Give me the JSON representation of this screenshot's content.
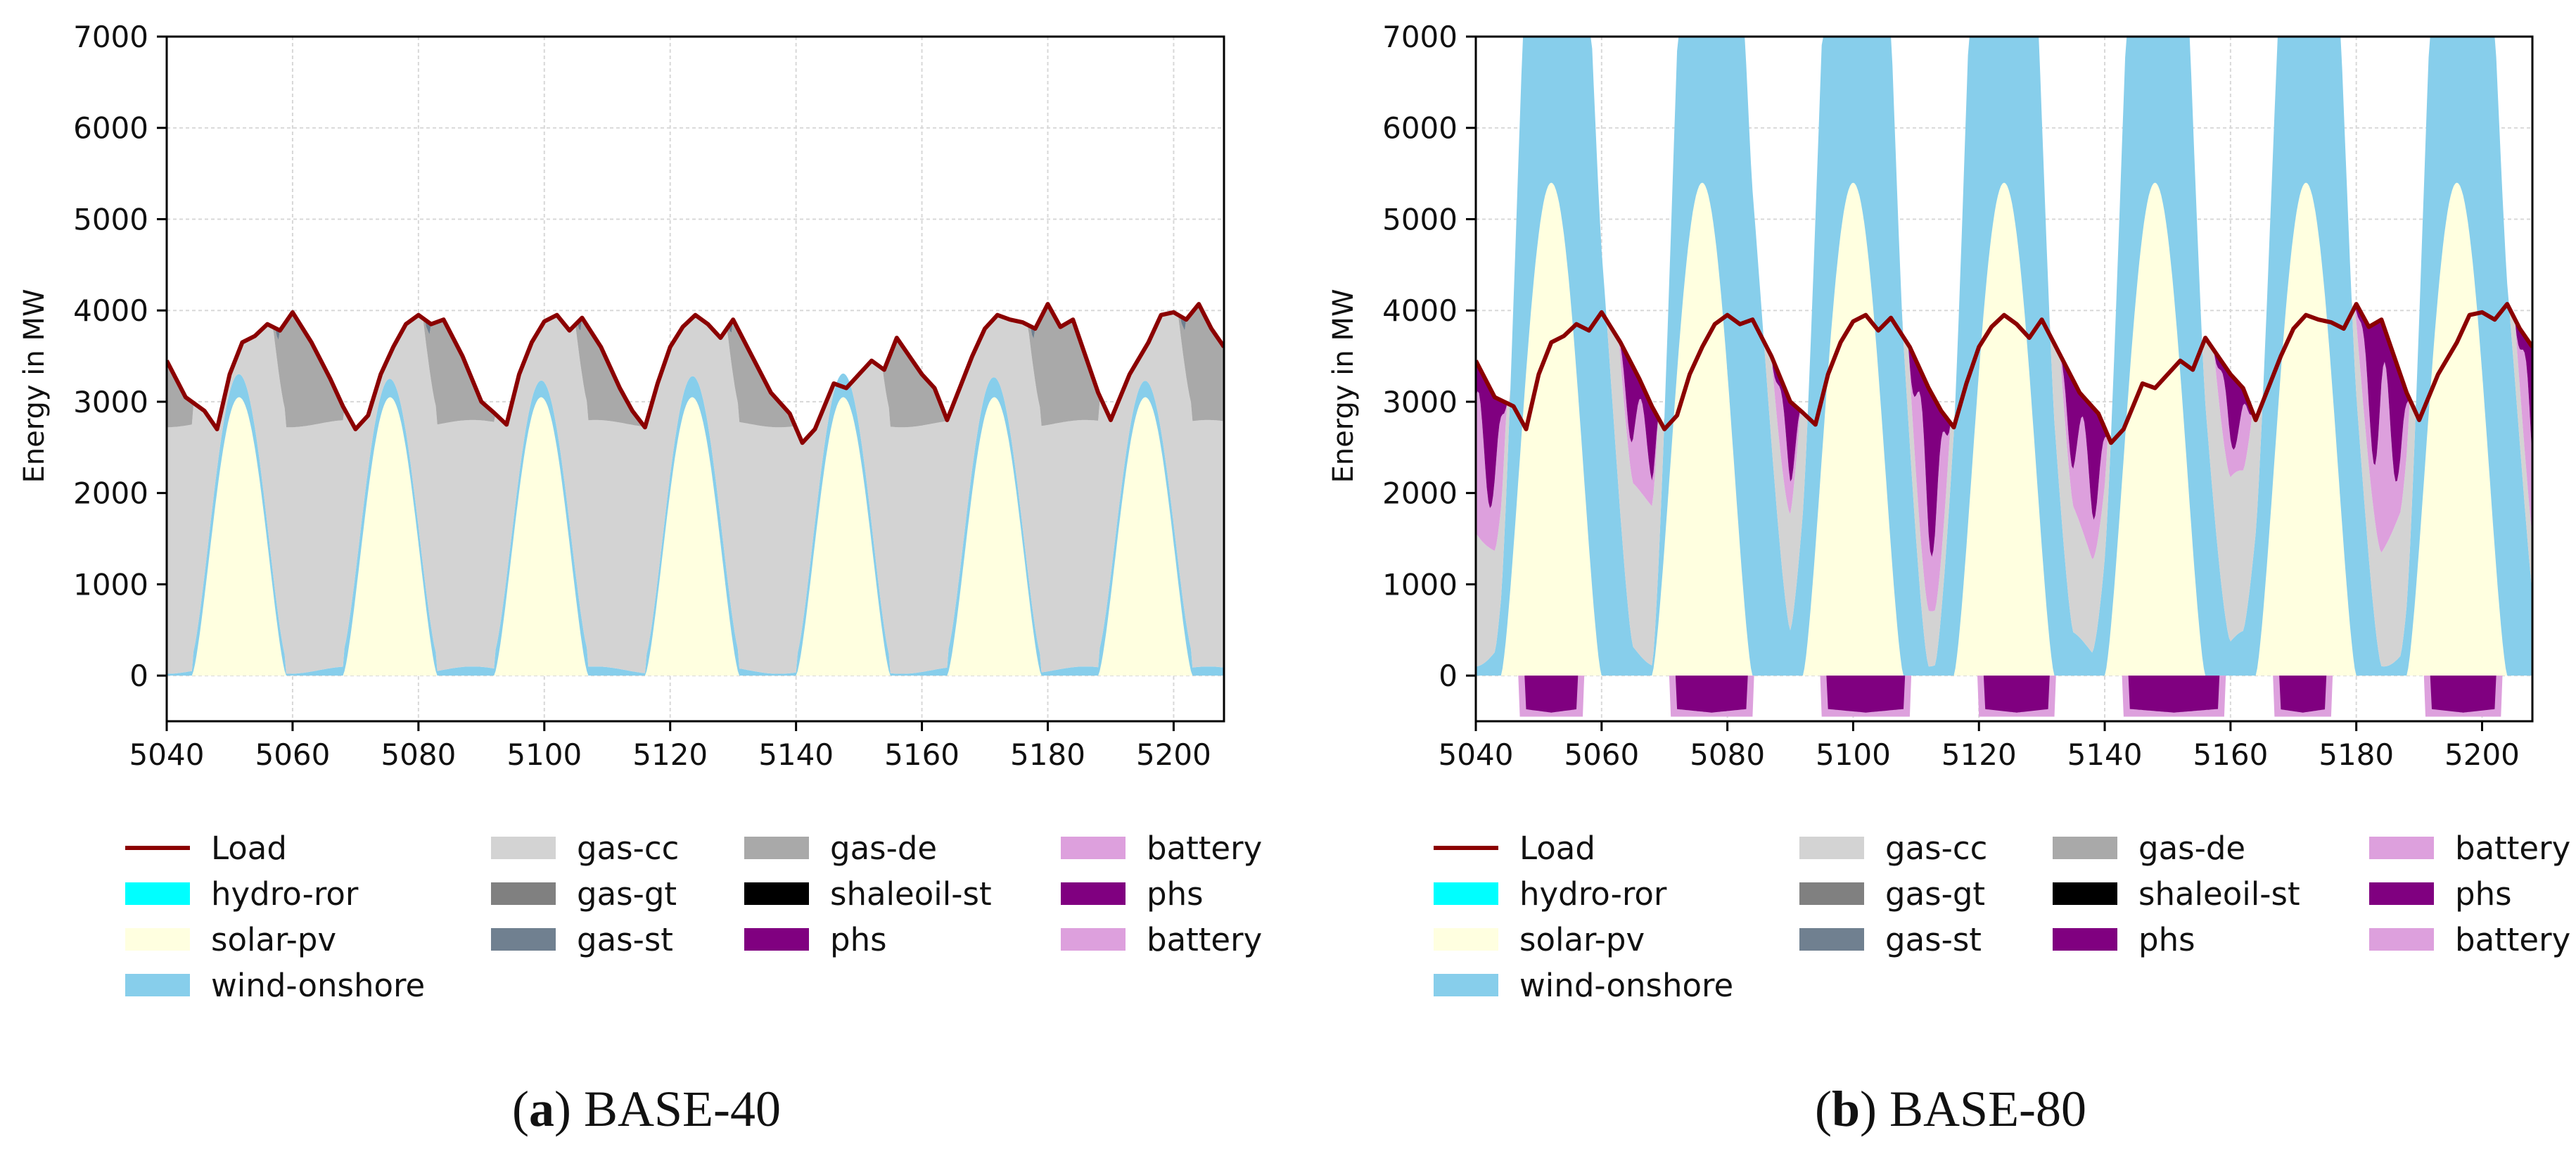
{
  "colors": {
    "Load": "#8b0000",
    "hydro-ror": "#00ffff",
    "solar-pv": "#ffffe0",
    "wind-onshore": "#87ceeb",
    "gas-cc": "#d3d3d3",
    "gas-gt": "#808080",
    "gas-st": "#708090",
    "gas-de": "#a9a9a9",
    "shaleoil-st": "#000000",
    "phs": "#800080",
    "battery": "#dda0dd"
  },
  "legend": {
    "columns": [
      [
        "Load",
        "hydro-ror",
        "solar-pv",
        "wind-onshore"
      ],
      [
        "gas-cc",
        "gas-gt",
        "gas-st"
      ],
      [
        "gas-de",
        "shaleoil-st",
        "phs"
      ],
      [
        "battery",
        "phs",
        "battery"
      ]
    ]
  },
  "chart_data": [
    {
      "type": "area",
      "caption_label": "a",
      "caption_text": "BASE-40",
      "ylabel": "Energy in MW",
      "xlim": [
        5040,
        5208
      ],
      "ylim": [
        -500,
        7000
      ],
      "xticks": [
        5040,
        5060,
        5080,
        5100,
        5120,
        5140,
        5160,
        5180,
        5200
      ],
      "yticks": [
        0,
        1000,
        2000,
        3000,
        4000,
        5000,
        6000,
        7000
      ],
      "grid": true,
      "load": [
        [
          5040,
          3450
        ],
        [
          5043,
          3050
        ],
        [
          5046,
          2900
        ],
        [
          5048,
          2700
        ],
        [
          5050,
          3300
        ],
        [
          5052,
          3650
        ],
        [
          5054,
          3720
        ],
        [
          5056,
          3850
        ],
        [
          5058,
          3780
        ],
        [
          5060,
          3980
        ],
        [
          5063,
          3650
        ],
        [
          5066,
          3250
        ],
        [
          5068,
          2950
        ],
        [
          5070,
          2700
        ],
        [
          5072,
          2850
        ],
        [
          5074,
          3300
        ],
        [
          5076,
          3600
        ],
        [
          5078,
          3850
        ],
        [
          5080,
          3950
        ],
        [
          5082,
          3850
        ],
        [
          5084,
          3900
        ],
        [
          5087,
          3500
        ],
        [
          5090,
          3000
        ],
        [
          5092,
          2880
        ],
        [
          5094,
          2750
        ],
        [
          5096,
          3300
        ],
        [
          5098,
          3650
        ],
        [
          5100,
          3880
        ],
        [
          5102,
          3950
        ],
        [
          5104,
          3780
        ],
        [
          5106,
          3920
        ],
        [
          5109,
          3600
        ],
        [
          5112,
          3150
        ],
        [
          5114,
          2900
        ],
        [
          5116,
          2720
        ],
        [
          5118,
          3200
        ],
        [
          5120,
          3600
        ],
        [
          5122,
          3820
        ],
        [
          5124,
          3950
        ],
        [
          5126,
          3850
        ],
        [
          5128,
          3700
        ],
        [
          5130,
          3900
        ],
        [
          5133,
          3500
        ],
        [
          5136,
          3100
        ],
        [
          5139,
          2870
        ],
        [
          5141,
          2550
        ],
        [
          5143,
          2700
        ],
        [
          5146,
          3200
        ],
        [
          5148,
          3150
        ],
        [
          5150,
          3300
        ],
        [
          5152,
          3450
        ],
        [
          5154,
          3350
        ],
        [
          5156,
          3700
        ],
        [
          5158,
          3500
        ],
        [
          5160,
          3300
        ],
        [
          5162,
          3150
        ],
        [
          5164,
          2800
        ],
        [
          5166,
          3150
        ],
        [
          5168,
          3500
        ],
        [
          5170,
          3800
        ],
        [
          5172,
          3950
        ],
        [
          5174,
          3900
        ],
        [
          5176,
          3870
        ],
        [
          5178,
          3800
        ],
        [
          5180,
          4070
        ],
        [
          5182,
          3820
        ],
        [
          5184,
          3900
        ],
        [
          5186,
          3500
        ],
        [
          5188,
          3100
        ],
        [
          5190,
          2800
        ],
        [
          5193,
          3300
        ],
        [
          5196,
          3650
        ],
        [
          5198,
          3950
        ],
        [
          5200,
          3980
        ],
        [
          5202,
          3900
        ],
        [
          5204,
          4070
        ],
        [
          5206,
          3800
        ],
        [
          5208,
          3600
        ]
      ],
      "solar_peaks": [
        5051.5,
        5075.5,
        5099.5,
        5123.5,
        5147.5,
        5171.5,
        5195.5
      ],
      "solar_peak_value": 3050,
      "solar_halfwidth": 7.5,
      "gas_cc_cap": 2700,
      "gas_de_mode": "peaker",
      "wind_base": 60,
      "wind_rim": 160,
      "wind_mode": "low"
    },
    {
      "type": "area",
      "caption_label": "b",
      "caption_text": "BASE-80",
      "ylabel": "Energy in MW",
      "xlim": [
        5040,
        5208
      ],
      "ylim": [
        -500,
        7000
      ],
      "xticks": [
        5040,
        5060,
        5080,
        5100,
        5120,
        5140,
        5160,
        5180,
        5200
      ],
      "yticks": [
        0,
        1000,
        2000,
        3000,
        4000,
        5000,
        6000,
        7000
      ],
      "grid": true,
      "load": [
        [
          5040,
          3450
        ],
        [
          5043,
          3050
        ],
        [
          5046,
          2950
        ],
        [
          5048,
          2700
        ],
        [
          5050,
          3300
        ],
        [
          5052,
          3650
        ],
        [
          5054,
          3720
        ],
        [
          5056,
          3850
        ],
        [
          5058,
          3780
        ],
        [
          5060,
          3980
        ],
        [
          5063,
          3650
        ],
        [
          5066,
          3250
        ],
        [
          5068,
          2950
        ],
        [
          5070,
          2700
        ],
        [
          5072,
          2850
        ],
        [
          5074,
          3300
        ],
        [
          5076,
          3600
        ],
        [
          5078,
          3850
        ],
        [
          5080,
          3950
        ],
        [
          5082,
          3850
        ],
        [
          5084,
          3900
        ],
        [
          5087,
          3500
        ],
        [
          5090,
          3000
        ],
        [
          5092,
          2880
        ],
        [
          5094,
          2750
        ],
        [
          5096,
          3300
        ],
        [
          5098,
          3650
        ],
        [
          5100,
          3880
        ],
        [
          5102,
          3950
        ],
        [
          5104,
          3780
        ],
        [
          5106,
          3920
        ],
        [
          5109,
          3600
        ],
        [
          5112,
          3150
        ],
        [
          5114,
          2900
        ],
        [
          5116,
          2720
        ],
        [
          5118,
          3200
        ],
        [
          5120,
          3600
        ],
        [
          5122,
          3820
        ],
        [
          5124,
          3950
        ],
        [
          5126,
          3850
        ],
        [
          5128,
          3700
        ],
        [
          5130,
          3900
        ],
        [
          5133,
          3500
        ],
        [
          5136,
          3100
        ],
        [
          5139,
          2870
        ],
        [
          5141,
          2550
        ],
        [
          5143,
          2700
        ],
        [
          5146,
          3200
        ],
        [
          5148,
          3150
        ],
        [
          5150,
          3300
        ],
        [
          5152,
          3450
        ],
        [
          5154,
          3350
        ],
        [
          5156,
          3700
        ],
        [
          5158,
          3500
        ],
        [
          5160,
          3300
        ],
        [
          5162,
          3150
        ],
        [
          5164,
          2800
        ],
        [
          5166,
          3150
        ],
        [
          5168,
          3500
        ],
        [
          5170,
          3800
        ],
        [
          5172,
          3950
        ],
        [
          5174,
          3900
        ],
        [
          5176,
          3870
        ],
        [
          5178,
          3800
        ],
        [
          5180,
          4070
        ],
        [
          5182,
          3820
        ],
        [
          5184,
          3900
        ],
        [
          5186,
          3500
        ],
        [
          5188,
          3100
        ],
        [
          5190,
          2800
        ],
        [
          5193,
          3300
        ],
        [
          5196,
          3650
        ],
        [
          5198,
          3950
        ],
        [
          5200,
          3980
        ],
        [
          5202,
          3900
        ],
        [
          5204,
          4070
        ],
        [
          5206,
          3800
        ],
        [
          5208,
          3600
        ]
      ],
      "solar_peaks": [
        5052,
        5076,
        5100,
        5124,
        5148,
        5172,
        5196
      ],
      "solar_peak_value": 5400,
      "solar_halfwidth": 8,
      "gas_cc_cap": 1200,
      "gas_de_mode": "none",
      "wind_peaks": [
        5054,
        5079,
        5101,
        5124,
        5149,
        5173,
        5198
      ],
      "wind_peak_values": [
        7600,
        7700,
        7800,
        8000,
        6800,
        6400,
        7000
      ],
      "storage_charge": [
        [
          5047,
          5057
        ],
        [
          5071,
          5084
        ],
        [
          5095,
          5109
        ],
        [
          5120,
          5132
        ],
        [
          5143,
          5159
        ],
        [
          5167,
          5176
        ],
        [
          5191,
          5203
        ]
      ],
      "storage_charge_min": -450
    }
  ]
}
